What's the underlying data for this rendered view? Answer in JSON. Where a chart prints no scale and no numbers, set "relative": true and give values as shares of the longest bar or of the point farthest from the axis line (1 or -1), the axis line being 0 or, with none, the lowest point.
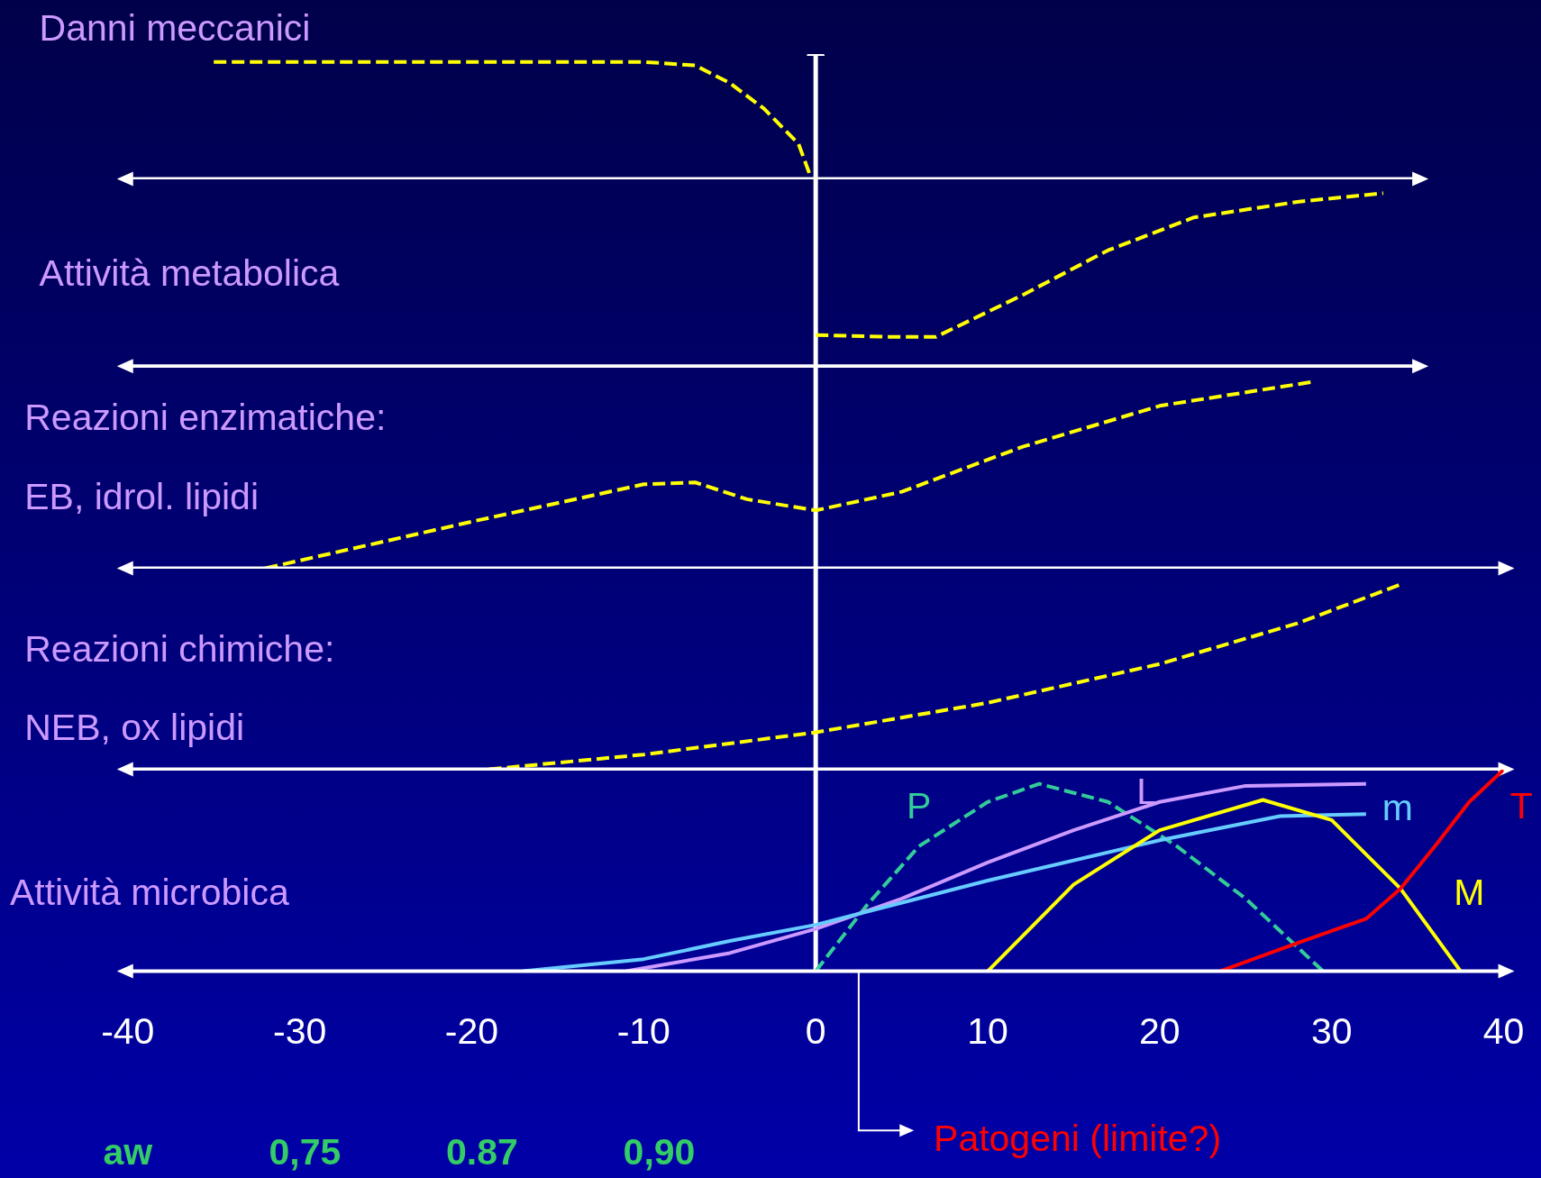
{
  "chart_data": [
    {
      "type": "line",
      "title": "Danni meccanici",
      "relative": true,
      "xlim": [
        -40,
        35
      ],
      "xticks": [
        -40,
        -30,
        -20,
        -10,
        0,
        10,
        20,
        30
      ],
      "tick_labels": false,
      "line_style": "dashed",
      "ref_lines": [
        {
          "axis": "x",
          "value": 0
        }
      ],
      "series": [
        {
          "color": "#ffff00",
          "x": [
            -35,
            -20,
            -10,
            -7,
            -5,
            -3,
            -1,
            -0.3
          ],
          "values": [
            1.0,
            1.0,
            1.0,
            0.97,
            0.82,
            0.6,
            0.3,
            0.02
          ]
        }
      ]
    },
    {
      "type": "line",
      "title": "Attività metabolica",
      "relative": true,
      "xlim": [
        -40,
        35
      ],
      "xticks": [
        -40,
        -30,
        -20,
        -10,
        0,
        10,
        20,
        30
      ],
      "tick_labels": false,
      "line_style": "dashed",
      "ref_lines": [
        {
          "axis": "x",
          "value": 0
        }
      ],
      "series": [
        {
          "color": "#ffff00",
          "x": [
            0,
            4,
            7,
            12,
            17,
            22,
            28,
            33
          ],
          "values": [
            0.18,
            0.17,
            0.17,
            0.41,
            0.67,
            0.86,
            0.95,
            1.0
          ]
        }
      ]
    },
    {
      "type": "line",
      "title": "Reazioni enzimatiche:",
      "subtitle": "EB, idrol. lipidi",
      "relative": true,
      "xlim": [
        -40,
        40
      ],
      "xticks": [
        -40,
        -30,
        -20,
        -10,
        0,
        10,
        20,
        30,
        40
      ],
      "tick_labels": false,
      "line_style": "dashed",
      "ref_lines": [
        {
          "axis": "x",
          "value": 0
        }
      ],
      "series": [
        {
          "color": "#ffff00",
          "x": [
            -32,
            -20,
            -10,
            -7,
            -4,
            0,
            5,
            12,
            20,
            29
          ],
          "values": [
            0,
            0.25,
            0.45,
            0.46,
            0.37,
            0.31,
            0.41,
            0.65,
            0.87,
            1.0
          ]
        }
      ]
    },
    {
      "type": "line",
      "title": "Reazioni chimiche:",
      "subtitle": "NEB, ox lipidi",
      "relative": true,
      "xlim": [
        -40,
        40
      ],
      "xticks": [
        -40,
        -30,
        -20,
        -10,
        0,
        10,
        20,
        30,
        40
      ],
      "tick_labels": false,
      "line_style": "dashed",
      "ref_lines": [
        {
          "axis": "x",
          "value": 0
        }
      ],
      "series": [
        {
          "color": "#ffff00",
          "x": [
            -19,
            -10,
            0,
            10,
            20,
            28,
            34
          ],
          "values": [
            0,
            0.08,
            0.2,
            0.36,
            0.57,
            0.79,
            1.0
          ]
        }
      ]
    },
    {
      "type": "line",
      "title": "Attività microbica",
      "relative": true,
      "xlim": [
        -40,
        40
      ],
      "xticks": [
        -40,
        -30,
        -20,
        -10,
        0,
        10,
        20,
        30,
        40
      ],
      "tick_labels": "x",
      "ref_lines": [
        {
          "axis": "x",
          "value": 0
        }
      ],
      "annotations": [
        "aw",
        "0,75",
        "0.87",
        "0,90",
        "Patogeni (limite?)"
      ],
      "series": [
        {
          "name": "P",
          "color": "#33cc99",
          "line_style": "dashed",
          "x": [
            0,
            3,
            6,
            10,
            13,
            17,
            21,
            25,
            29.5
          ],
          "values": [
            0,
            0.33,
            0.62,
            0.84,
            0.93,
            0.84,
            0.62,
            0.36,
            0
          ]
        },
        {
          "name": "L",
          "color": "#cc99ff",
          "line_style": "solid",
          "x": [
            -11,
            -5,
            0,
            5,
            10,
            15,
            20,
            25,
            32
          ],
          "values": [
            0,
            0.09,
            0.21,
            0.36,
            0.54,
            0.7,
            0.84,
            0.92,
            0.93
          ]
        },
        {
          "name": "m",
          "color": "#66ccff",
          "line_style": "solid",
          "x": [
            -17,
            -10,
            -5,
            0,
            10,
            20,
            27,
            32
          ],
          "values": [
            0,
            0.06,
            0.15,
            0.23,
            0.45,
            0.65,
            0.77,
            0.78
          ]
        },
        {
          "name": "M",
          "color": "#ffff00",
          "line_style": "solid",
          "x": [
            10,
            15,
            20,
            26,
            30,
            34,
            37.5
          ],
          "values": [
            0,
            0.43,
            0.7,
            0.85,
            0.75,
            0.41,
            0
          ]
        },
        {
          "name": "T",
          "color": "#ff0000",
          "line_style": "solid",
          "x": [
            23.5,
            28,
            32,
            34,
            36,
            38,
            40
          ],
          "values": [
            0,
            0.14,
            0.26,
            0.41,
            0.62,
            0.84,
            1.0
          ]
        }
      ]
    }
  ]
}
